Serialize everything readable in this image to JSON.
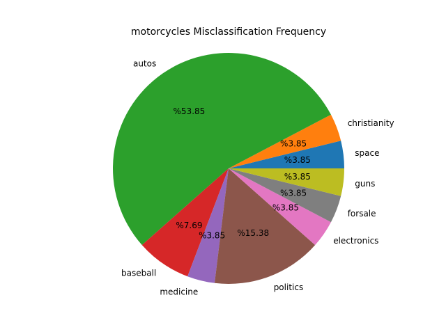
{
  "chart_data": {
    "type": "pie",
    "title": "motorcycles Misclassification Frequency",
    "start_angle_deg": 0,
    "direction": "counterclockwise",
    "slices": [
      {
        "label": "space",
        "value": 3.85,
        "pct_text": "%3.85",
        "color": "#1f77b4"
      },
      {
        "label": "christianity",
        "value": 3.85,
        "pct_text": "%3.85",
        "color": "#ff7f0e"
      },
      {
        "label": "autos",
        "value": 53.85,
        "pct_text": "%53.85",
        "color": "#2ca02c"
      },
      {
        "label": "baseball",
        "value": 7.69,
        "pct_text": "%7.69",
        "color": "#d62728"
      },
      {
        "label": "medicine",
        "value": 3.85,
        "pct_text": "%3.85",
        "color": "#9467bd"
      },
      {
        "label": "politics",
        "value": 15.38,
        "pct_text": "%15.38",
        "color": "#8c564b"
      },
      {
        "label": "electronics",
        "value": 3.85,
        "pct_text": "%3.85",
        "color": "#e377c2"
      },
      {
        "label": "forsale",
        "value": 3.85,
        "pct_text": "%3.85",
        "color": "#7f7f7f"
      },
      {
        "label": "guns",
        "value": 3.85,
        "pct_text": "%3.85",
        "color": "#bcbd22"
      }
    ]
  }
}
